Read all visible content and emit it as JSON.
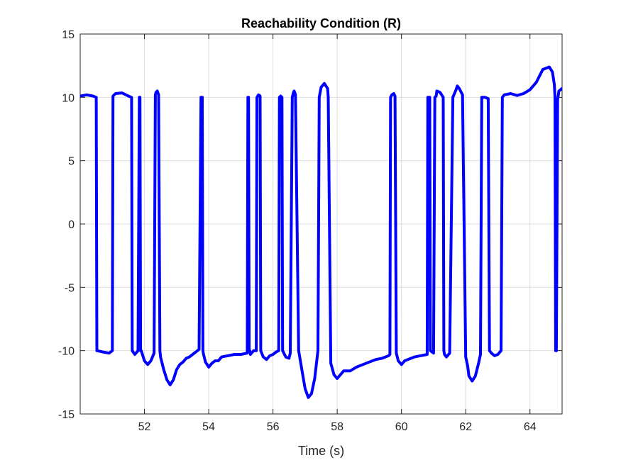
{
  "chart_data": {
    "type": "line",
    "title": "Reachability Condition (R)",
    "xlabel": "Time (s)",
    "ylabel": "",
    "xlim": [
      50,
      65
    ],
    "ylim": [
      -15,
      15
    ],
    "xticks": [
      52,
      54,
      56,
      58,
      60,
      62,
      64
    ],
    "yticks": [
      -15,
      -10,
      -5,
      0,
      5,
      10,
      15
    ],
    "grid": true,
    "series": [
      {
        "name": "",
        "color": "#0000ff",
        "x": [
          50.0,
          50.2,
          50.4,
          50.5,
          50.52,
          50.7,
          50.9,
          51.0,
          51.02,
          51.1,
          51.3,
          51.5,
          51.6,
          51.62,
          51.7,
          51.8,
          51.84,
          51.86,
          51.88,
          51.9,
          52.0,
          52.1,
          52.2,
          52.3,
          52.34,
          52.36,
          52.4,
          52.44,
          52.48,
          52.5,
          52.6,
          52.7,
          52.8,
          52.9,
          53.0,
          53.1,
          53.2,
          53.3,
          53.4,
          53.5,
          53.6,
          53.7,
          53.76,
          53.78,
          53.8,
          53.82,
          53.84,
          53.9,
          54.0,
          54.1,
          54.2,
          54.3,
          54.4,
          54.6,
          54.8,
          55.0,
          55.2,
          55.22,
          55.24,
          55.26,
          55.28,
          55.3,
          55.4,
          55.48,
          55.5,
          55.55,
          55.6,
          55.62,
          55.7,
          55.8,
          55.9,
          56.0,
          56.1,
          56.18,
          56.2,
          56.24,
          56.28,
          56.3,
          56.4,
          56.5,
          56.54,
          56.6,
          56.64,
          56.66,
          56.7,
          56.8,
          56.9,
          57.0,
          57.1,
          57.2,
          57.3,
          57.4,
          57.44,
          57.5,
          57.6,
          57.7,
          57.72,
          57.8,
          57.9,
          58.0,
          58.2,
          58.4,
          58.6,
          58.8,
          59.0,
          59.2,
          59.4,
          59.6,
          59.64,
          59.66,
          59.7,
          59.76,
          59.8,
          59.84,
          59.9,
          60.0,
          60.1,
          60.2,
          60.4,
          60.6,
          60.8,
          60.82,
          60.84,
          60.88,
          60.9,
          61.0,
          61.04,
          61.08,
          61.1,
          61.2,
          61.3,
          61.32,
          61.34,
          61.4,
          61.5,
          61.6,
          61.7,
          61.74,
          61.8,
          61.9,
          62.0,
          62.06,
          62.1,
          62.2,
          62.3,
          62.4,
          62.46,
          62.5,
          62.6,
          62.7,
          62.74,
          62.8,
          62.9,
          63.0,
          63.1,
          63.14,
          63.2,
          63.4,
          63.6,
          63.8,
          64.0,
          64.2,
          64.4,
          64.6,
          64.7,
          64.76,
          64.78,
          64.8,
          64.82,
          64.86,
          64.9,
          65.0
        ],
        "y": [
          10.1,
          10.2,
          10.1,
          10.0,
          -10.0,
          -10.1,
          -10.2,
          -10.0,
          10.1,
          10.3,
          10.35,
          10.1,
          10.0,
          -10.0,
          -10.3,
          -10.0,
          10.0,
          10.0,
          -10.0,
          -10.0,
          -10.8,
          -11.1,
          -10.8,
          -10.2,
          10.2,
          10.4,
          10.5,
          10.2,
          -10.0,
          -10.5,
          -11.5,
          -12.3,
          -12.7,
          -12.3,
          -11.5,
          -11.1,
          -10.9,
          -10.6,
          -10.5,
          -10.3,
          -10.1,
          -9.9,
          10.0,
          10.0,
          10.0,
          -10.0,
          -10.3,
          -10.9,
          -11.3,
          -11.0,
          -10.8,
          -10.8,
          -10.5,
          -10.4,
          -10.3,
          -10.3,
          -10.2,
          10.0,
          10.0,
          -10.0,
          -10.0,
          -10.3,
          -10.0,
          -10.0,
          10.0,
          10.2,
          10.1,
          -10.0,
          -10.5,
          -10.7,
          -10.4,
          -10.3,
          -10.1,
          -10.0,
          10.0,
          10.1,
          10.0,
          -10.0,
          -10.5,
          -10.6,
          -10.2,
          10.0,
          10.4,
          10.5,
          10.2,
          -10.0,
          -11.5,
          -13.0,
          -13.7,
          -13.4,
          -12.2,
          -10.0,
          10.0,
          10.8,
          11.1,
          10.7,
          10.0,
          -11.0,
          -11.9,
          -12.2,
          -11.6,
          -11.6,
          -11.3,
          -11.1,
          -10.9,
          -10.7,
          -10.6,
          -10.4,
          -10.3,
          10.0,
          10.2,
          10.3,
          10.1,
          -10.2,
          -10.8,
          -11.1,
          -10.8,
          -10.7,
          -10.5,
          -10.4,
          -10.3,
          10.0,
          10.0,
          10.0,
          -10.0,
          -10.2,
          10.0,
          10.1,
          10.5,
          10.4,
          10.0,
          -10.0,
          -10.3,
          -10.5,
          -10.2,
          10.0,
          10.6,
          10.9,
          10.7,
          10.2,
          -10.5,
          -11.2,
          -12.0,
          -12.4,
          -12.0,
          -11.0,
          -10.3,
          10.0,
          10.0,
          9.9,
          -10.0,
          -10.2,
          -10.4,
          -10.3,
          -10.0,
          10.0,
          10.2,
          10.3,
          10.15,
          10.3,
          10.6,
          11.2,
          12.2,
          12.4,
          12.0,
          11.0,
          10.0,
          -10.0,
          -10.0,
          9.8,
          10.5,
          10.7
        ]
      }
    ]
  }
}
